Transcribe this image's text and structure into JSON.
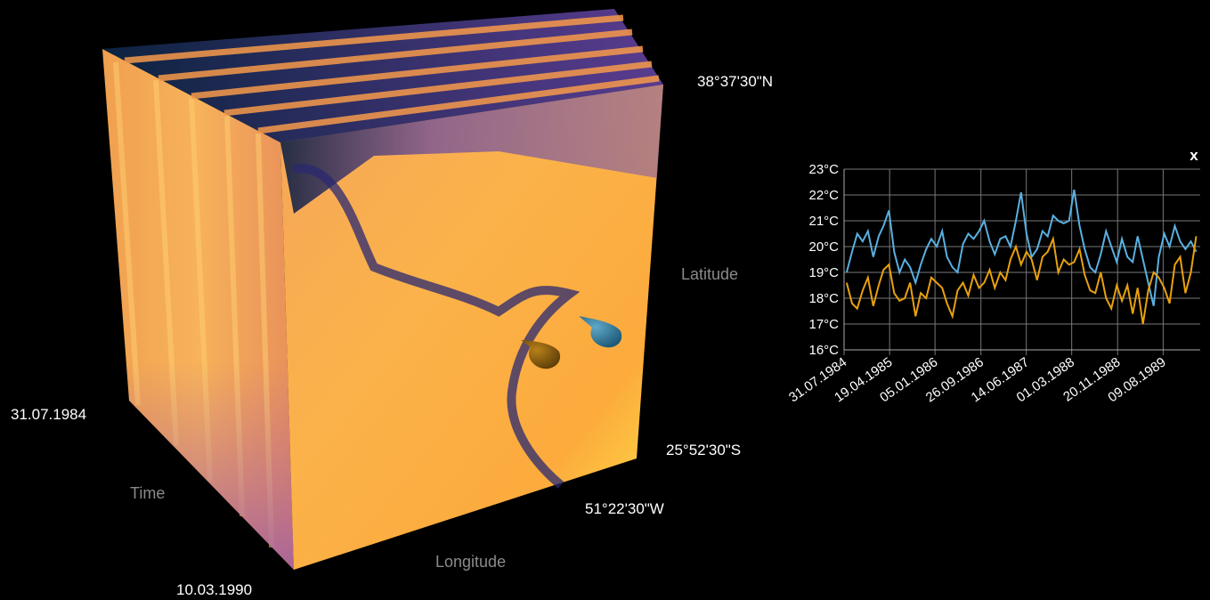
{
  "cube": {
    "north": "38°37'30\"N",
    "south": "25°52'30\"S",
    "west": "51°22'30\"W",
    "latitude": "Latitude",
    "longitude": "Longitude",
    "time": "Time",
    "time_start": "31.07.1984",
    "time_end": "10.03.1990"
  },
  "close": "x",
  "chart_data": {
    "type": "line",
    "x": [
      "15.08.1984",
      "15.09.1984",
      "15.10.1984",
      "15.11.1984",
      "15.12.1984",
      "15.01.1985",
      "15.02.1985",
      "15.03.1985",
      "15.04.1985",
      "15.05.1985",
      "15.06.1985",
      "15.07.1985",
      "15.08.1985",
      "15.09.1985",
      "15.10.1985",
      "15.11.1985",
      "15.12.1985",
      "15.01.1986",
      "15.02.1986",
      "15.03.1986",
      "15.04.1986",
      "15.05.1986",
      "15.06.1986",
      "15.07.1986",
      "15.08.1986",
      "15.09.1986",
      "15.10.1986",
      "15.11.1986",
      "15.12.1986",
      "15.01.1987",
      "15.02.1987",
      "15.03.1987",
      "15.04.1987",
      "15.05.1987",
      "15.06.1987",
      "15.07.1987",
      "15.08.1987",
      "15.09.1987",
      "15.10.1987",
      "15.11.1987",
      "15.12.1987",
      "15.01.1988",
      "15.02.1988",
      "15.03.1988",
      "15.04.1988",
      "15.05.1988",
      "15.06.1988",
      "15.07.1988",
      "15.08.1988",
      "15.09.1988",
      "15.10.1988",
      "15.11.1988",
      "15.12.1988",
      "15.01.1989",
      "15.02.1989",
      "15.03.1989",
      "15.04.1989",
      "15.05.1989",
      "15.06.1989",
      "15.07.1989",
      "15.08.1989",
      "15.09.1989",
      "15.10.1989",
      "15.11.1989",
      "15.12.1989",
      "15.01.1990",
      "15.02.1990"
    ],
    "series": [
      {
        "color": "#5ab0e0",
        "values": [
          19.0,
          19.8,
          20.5,
          20.2,
          20.6,
          19.6,
          20.4,
          20.8,
          21.4,
          19.8,
          19.0,
          19.5,
          19.2,
          18.6,
          19.3,
          19.9,
          20.3,
          20.0,
          20.6,
          19.6,
          19.2,
          19.0,
          20.1,
          20.5,
          20.3,
          20.6,
          21.0,
          20.2,
          19.7,
          20.3,
          20.4,
          20.0,
          21.0,
          22.1,
          20.5,
          19.6,
          19.9,
          20.6,
          20.4,
          21.2,
          21.0,
          20.9,
          21.0,
          22.2,
          20.8,
          19.9,
          19.2,
          19.0,
          19.7,
          20.6,
          20.0,
          19.4,
          20.3,
          19.6,
          19.4,
          20.4,
          19.5,
          18.6,
          17.7,
          19.6,
          20.5,
          20.0,
          20.8,
          20.2,
          19.9,
          20.2,
          19.8
        ]
      },
      {
        "color": "#e8a10f",
        "values": [
          18.6,
          17.8,
          17.6,
          18.3,
          18.8,
          17.7,
          18.5,
          19.1,
          19.3,
          18.2,
          17.9,
          18.0,
          18.6,
          17.3,
          18.2,
          18.0,
          18.8,
          18.6,
          18.4,
          17.8,
          17.3,
          18.3,
          18.6,
          18.1,
          18.9,
          18.4,
          18.6,
          19.1,
          18.4,
          19.0,
          18.7,
          19.5,
          20.0,
          19.3,
          19.8,
          19.5,
          18.7,
          19.6,
          19.8,
          20.3,
          19.0,
          19.5,
          19.3,
          19.4,
          19.9,
          18.9,
          18.3,
          18.2,
          19.0,
          18.0,
          17.6,
          18.5,
          17.9,
          18.5,
          17.4,
          18.4,
          17.0,
          18.3,
          19.0,
          18.8,
          18.4,
          17.8,
          19.3,
          19.6,
          18.2,
          19.0,
          20.4
        ]
      }
    ],
    "xlim": [
      "31.07.1984",
      "10.03.1990"
    ],
    "xticks": [
      "31.07.1984",
      "19.04.1985",
      "05.01.1986",
      "26.09.1986",
      "14.06.1987",
      "01.03.1988",
      "20.11.1988",
      "09.08.1989"
    ],
    "ylim": [
      16,
      23
    ],
    "yticks": [
      {
        "value": 16,
        "label": "16°C"
      },
      {
        "value": 17,
        "label": "17°C"
      },
      {
        "value": 18,
        "label": "18°C"
      },
      {
        "value": 19,
        "label": "19°C"
      },
      {
        "value": 20,
        "label": "20°C"
      },
      {
        "value": 21,
        "label": "21°C"
      },
      {
        "value": 22,
        "label": "22°C"
      },
      {
        "value": 23,
        "label": "23°C"
      }
    ],
    "grid": true
  }
}
